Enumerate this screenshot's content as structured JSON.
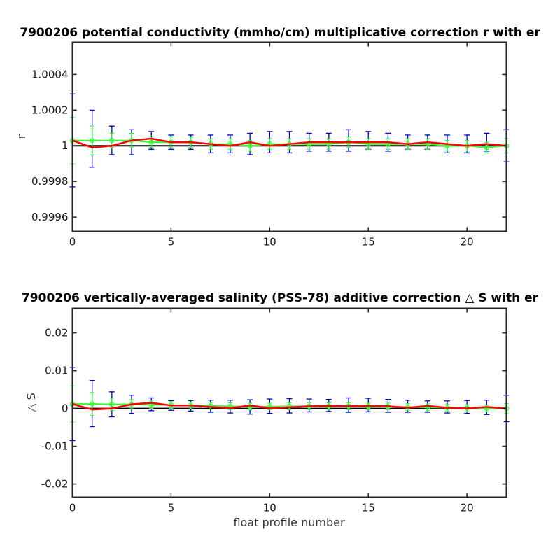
{
  "chart_data": [
    {
      "type": "line",
      "title": "7900206 potential conductivity (mmho/cm) multiplicative correction r with er",
      "xlabel": "",
      "ylabel": "r",
      "xlim": [
        0,
        22
      ],
      "ylim": [
        0.99952,
        1.00058
      ],
      "xticks": [
        "0",
        "5",
        "10",
        "15",
        "20"
      ],
      "yticks": [
        "0.9996",
        "0.9998",
        "1",
        "1.0002",
        "1.0004"
      ],
      "grid": false,
      "legend": "none",
      "colors": {
        "axes": "#262626",
        "reference": "#000000",
        "fit": "#ff0000",
        "errorbar": "#0000cc",
        "correction": "#33ff33"
      },
      "reference_y": 1,
      "series": [
        {
          "role": "fit",
          "x": [
            0,
            1,
            2,
            3,
            4,
            5,
            6,
            7,
            8,
            9,
            10,
            11,
            12,
            13,
            14,
            15,
            16,
            17,
            18,
            19,
            20,
            21,
            22
          ],
          "y": [
            1.00003,
            0.99999,
            1.0,
            1.00003,
            1.00004,
            1.00002,
            1.00002,
            1.00001,
            1.0,
            1.00002,
            1.0,
            1.00001,
            1.00002,
            1.00002,
            1.00002,
            1.00002,
            1.00002,
            1.00001,
            1.00002,
            1.00001,
            1.0,
            1.00001,
            1.0
          ]
        },
        {
          "role": "errorbar",
          "x": [
            0,
            1,
            2,
            3,
            4,
            5,
            6,
            7,
            8,
            9,
            10,
            11,
            12,
            13,
            14,
            15,
            16,
            17,
            18,
            19,
            20,
            21,
            22
          ],
          "y": [
            1.00003,
            1.00004,
            1.00003,
            1.00002,
            1.00003,
            1.00002,
            1.00002,
            1.00001,
            1.00001,
            1.00001,
            1.00002,
            1.00002,
            1.00002,
            1.00002,
            1.00003,
            1.00003,
            1.00002,
            1.00002,
            1.00002,
            1.00001,
            1.00001,
            1.00002,
            1.0
          ],
          "err": [
            0.00026,
            0.00016,
            8e-05,
            7e-05,
            5e-05,
            4e-05,
            4e-05,
            5e-05,
            5e-05,
            6e-05,
            6e-05,
            6e-05,
            5e-05,
            5e-05,
            6e-05,
            5e-05,
            5e-05,
            4e-05,
            4e-05,
            5e-05,
            5e-05,
            5e-05,
            9e-05
          ]
        },
        {
          "role": "correction",
          "x": [
            0,
            1,
            2,
            3,
            4,
            5,
            6,
            7,
            8,
            9,
            10,
            11,
            12,
            13,
            14,
            15,
            16,
            17,
            18,
            19,
            20,
            21,
            22
          ],
          "y": [
            1.00003,
            1.00003,
            1.00003,
            1.00003,
            1.00002,
            1.00002,
            1.00002,
            1.00001,
            1.00001,
            1.0,
            1.00001,
            1.00001,
            1.00001,
            1.00001,
            1.00002,
            1.00001,
            1.00001,
            1.00001,
            1.00001,
            1.0,
            1.0,
            0.99999,
            1.0
          ],
          "err": [
            0.00013,
            8e-05,
            4e-05,
            4e-05,
            3e-05,
            3e-05,
            3e-05,
            3e-05,
            3e-05,
            3e-05,
            3e-05,
            3e-05,
            3e-05,
            3e-05,
            3e-05,
            3e-05,
            3e-05,
            3e-05,
            3e-05,
            3e-05,
            3e-05,
            3e-05,
            4e-05
          ]
        }
      ]
    },
    {
      "type": "line",
      "title": "7900206 vertically-averaged salinity (PSS-78) additive correction △ S with er",
      "xlabel": "float profile number",
      "ylabel": "△ S",
      "xlim": [
        0,
        22
      ],
      "ylim": [
        -0.0235,
        0.0265
      ],
      "xticks": [
        "0",
        "5",
        "10",
        "15",
        "20"
      ],
      "yticks": [
        "-0.02",
        "-0.01",
        "0",
        "0.01",
        "0.02"
      ],
      "grid": false,
      "legend": "none",
      "colors": {
        "axes": "#262626",
        "reference": "#000000",
        "fit": "#ff0000",
        "errorbar": "#0000cc",
        "correction": "#33ff33"
      },
      "reference_y": 0,
      "series": [
        {
          "role": "fit",
          "x": [
            0,
            1,
            2,
            3,
            4,
            5,
            6,
            7,
            8,
            9,
            10,
            11,
            12,
            13,
            14,
            15,
            16,
            17,
            18,
            19,
            20,
            21,
            22
          ],
          "y": [
            0.0012,
            -0.0003,
            0.0,
            0.0011,
            0.0015,
            0.0008,
            0.0008,
            0.0004,
            0.0001,
            0.0008,
            0.0001,
            0.0003,
            0.0006,
            0.0007,
            0.0006,
            0.0007,
            0.0006,
            0.0002,
            0.0007,
            0.0002,
            0.0,
            0.0004,
            0.0
          ]
        },
        {
          "role": "errorbar",
          "x": [
            0,
            1,
            2,
            3,
            4,
            5,
            6,
            7,
            8,
            9,
            10,
            11,
            12,
            13,
            14,
            15,
            16,
            17,
            18,
            19,
            20,
            21,
            22
          ],
          "y": [
            0.0012,
            0.0013,
            0.0011,
            0.0011,
            0.0011,
            0.0008,
            0.0007,
            0.0006,
            0.0005,
            0.0004,
            0.0006,
            0.0007,
            0.0008,
            0.0008,
            0.0009,
            0.0009,
            0.0007,
            0.0006,
            0.0005,
            0.0004,
            0.0004,
            0.0003,
            0.0
          ],
          "err": [
            0.0097,
            0.0061,
            0.0033,
            0.0024,
            0.0017,
            0.0013,
            0.0014,
            0.0016,
            0.0017,
            0.0019,
            0.0019,
            0.0019,
            0.0017,
            0.0016,
            0.0019,
            0.0018,
            0.0017,
            0.0016,
            0.0015,
            0.0016,
            0.0017,
            0.0019,
            0.0035
          ]
        },
        {
          "role": "correction",
          "x": [
            0,
            1,
            2,
            3,
            4,
            5,
            6,
            7,
            8,
            9,
            10,
            11,
            12,
            13,
            14,
            15,
            16,
            17,
            18,
            19,
            20,
            21,
            22
          ],
          "y": [
            0.0012,
            0.0012,
            0.0011,
            0.0011,
            0.001,
            0.0009,
            0.0008,
            0.0007,
            0.0006,
            0.0005,
            0.0005,
            0.0006,
            0.0006,
            0.0006,
            0.0006,
            0.0005,
            0.0005,
            0.0004,
            0.0003,
            0.0002,
            0.0001,
            0.0,
            0.0
          ],
          "err": [
            0.0048,
            0.003,
            0.0016,
            0.0012,
            0.001,
            0.0009,
            0.0009,
            0.0009,
            0.0009,
            0.0009,
            0.0009,
            0.0009,
            0.0009,
            0.0009,
            0.0009,
            0.0009,
            0.0009,
            0.0009,
            0.0009,
            0.0009,
            0.0009,
            0.0009,
            0.0013
          ]
        }
      ]
    }
  ]
}
